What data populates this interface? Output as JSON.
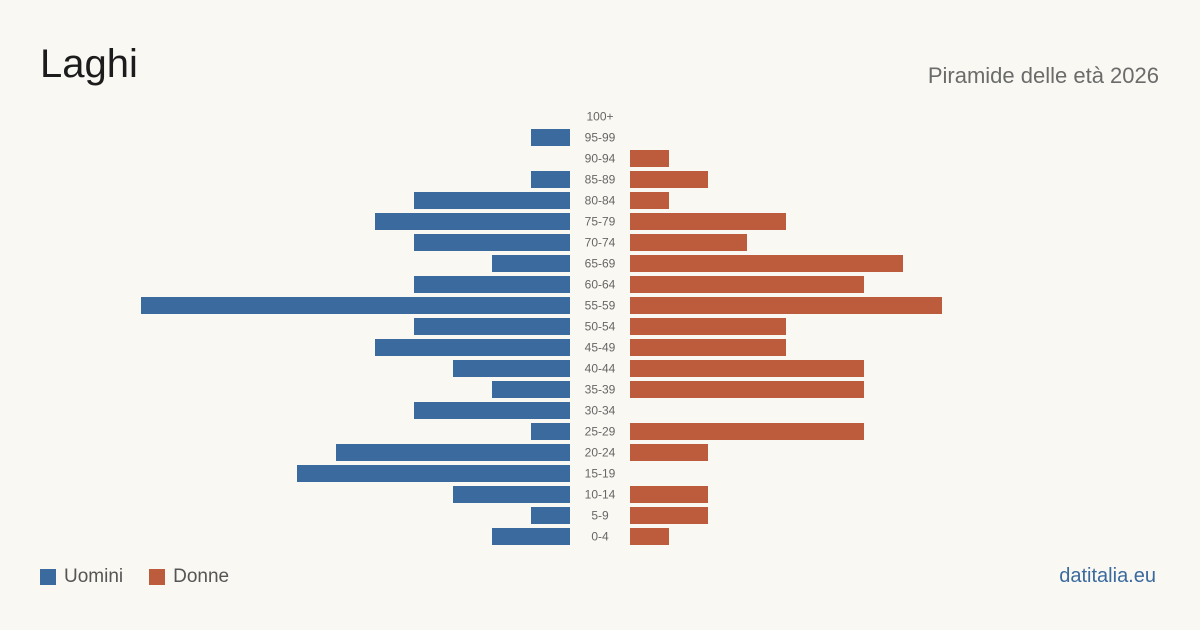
{
  "header": {
    "title": "Laghi",
    "subtitle": "Piramide delle età 2026"
  },
  "legend": {
    "men_label": "Uomini",
    "women_label": "Donne"
  },
  "brand": "datitalia.eu",
  "colors": {
    "men": "#3a6a9e",
    "women": "#bc5c3d",
    "background": "#faf8f3"
  },
  "chart_data": {
    "type": "bar",
    "orientation": "horizontal-pyramid",
    "categories": [
      "100+",
      "95-99",
      "90-94",
      "85-89",
      "80-84",
      "75-79",
      "70-74",
      "65-69",
      "60-64",
      "55-59",
      "50-54",
      "45-49",
      "40-44",
      "35-39",
      "30-34",
      "25-29",
      "20-24",
      "15-19",
      "10-14",
      "5-9",
      "0-4"
    ],
    "series": [
      {
        "name": "Uomini",
        "values": [
          0,
          1,
          0,
          1,
          4,
          5,
          4,
          2,
          4,
          11,
          4,
          5,
          3,
          2,
          4,
          1,
          6,
          7,
          3,
          1,
          2
        ]
      },
      {
        "name": "Donne",
        "values": [
          0,
          0,
          1,
          2,
          1,
          4,
          3,
          7,
          6,
          8,
          4,
          4,
          6,
          6,
          0,
          6,
          2,
          0,
          2,
          2,
          1
        ]
      }
    ],
    "legend_position": "bottom-left",
    "grid": false
  }
}
